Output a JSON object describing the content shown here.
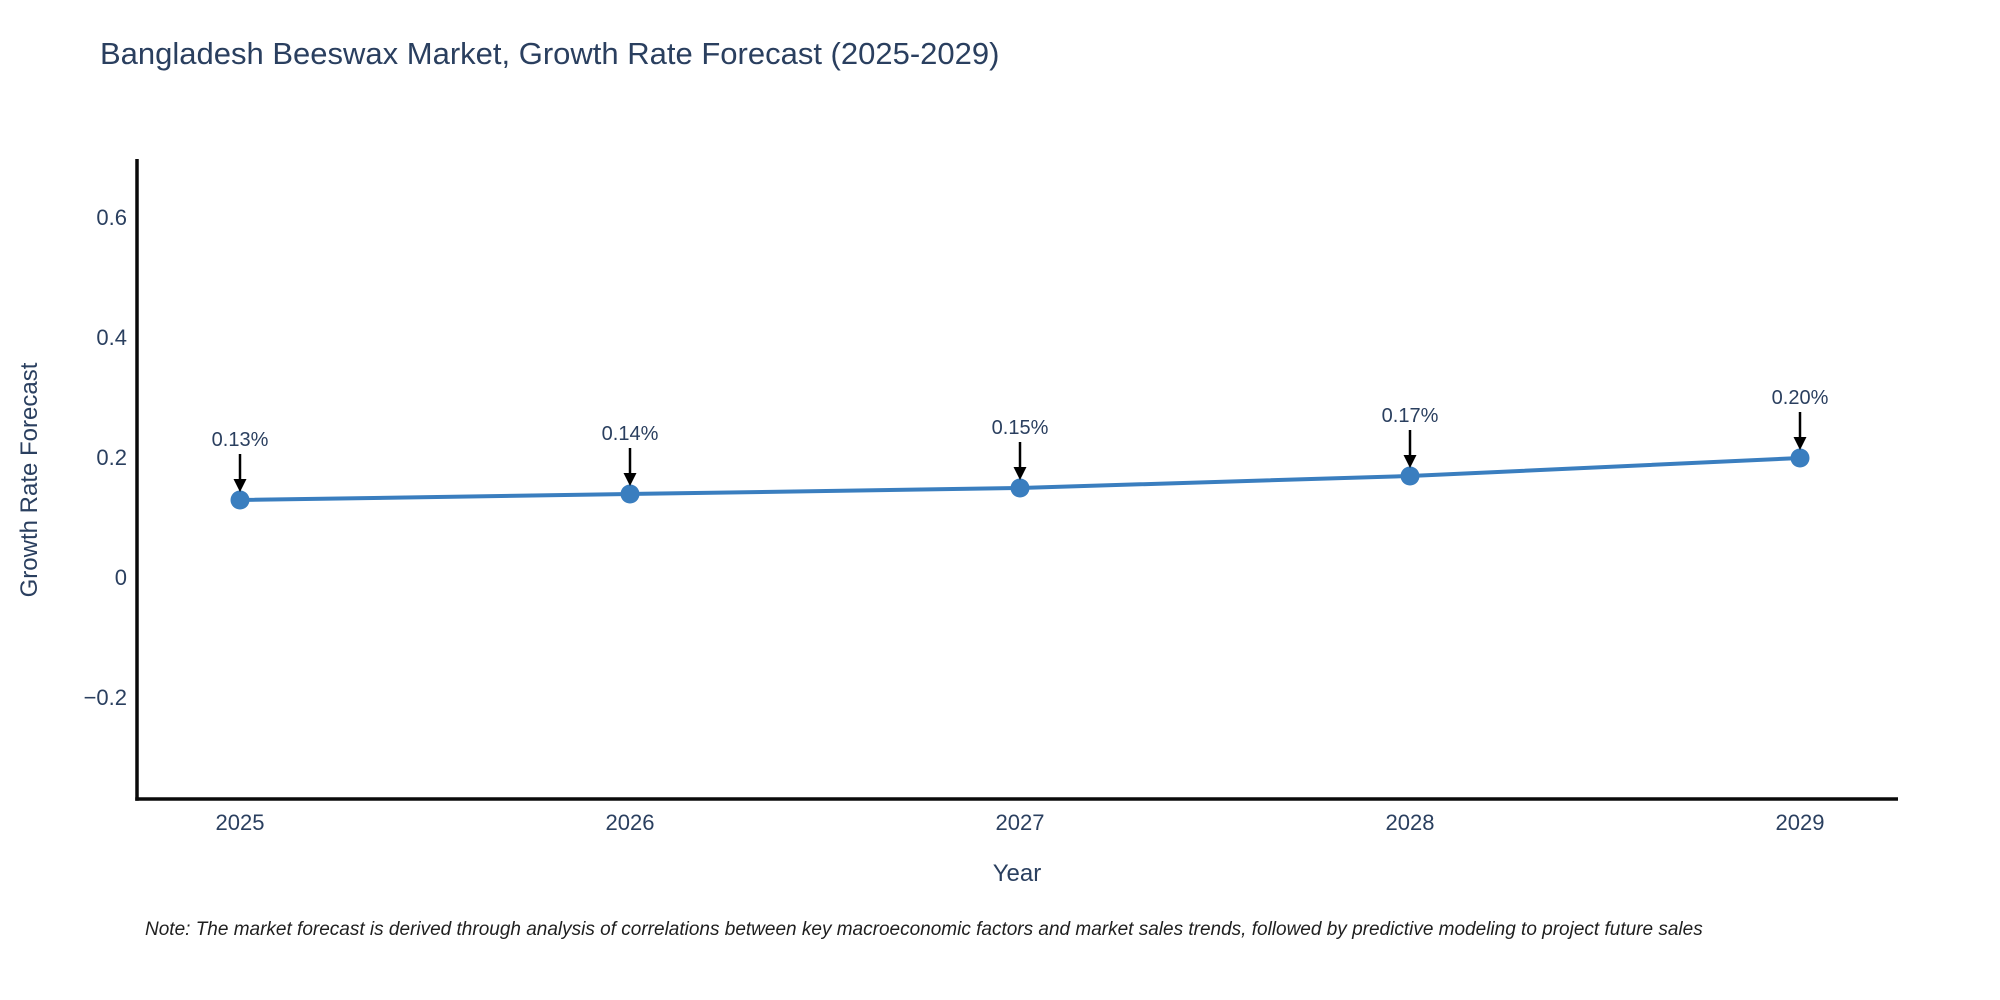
{
  "chart": {
    "title": "Bangladesh Beeswax Market, Growth Rate Forecast (2025-2029)",
    "xlabel": "Year",
    "ylabel": "Growth Rate Forecast",
    "note": "Note: The market forecast is derived through analysis of correlations between key macroeconomic factors and market sales trends, followed by predictive modeling to project future sales"
  },
  "chart_data": {
    "type": "line",
    "title": "Bangladesh Beeswax Market, Growth Rate Forecast (2025-2029)",
    "xlabel": "Year",
    "ylabel": "Growth Rate Forecast",
    "x": [
      2025,
      2026,
      2027,
      2028,
      2029
    ],
    "values": [
      0.13,
      0.14,
      0.15,
      0.17,
      0.2
    ],
    "point_labels": [
      "0.13%",
      "0.14%",
      "0.15%",
      "0.17%",
      "0.20%"
    ],
    "yticks": [
      0.6,
      0.4,
      0.2,
      0,
      -0.2
    ],
    "ytick_labels": [
      "0.6",
      "0.4",
      "0.2",
      "0",
      "−0.2"
    ],
    "xtick_labels": [
      "2025",
      "2026",
      "2027",
      "2028",
      "2029"
    ],
    "ylim": [
      -0.37,
      0.7
    ],
    "grid": false,
    "legend_position": "none",
    "line_color": "#3a7ebf",
    "marker_color": "#3a7ebf",
    "axis_color": "#0a0a0a",
    "text_color": "#2a3f5f",
    "annotation_arrow_color": "#000000"
  }
}
